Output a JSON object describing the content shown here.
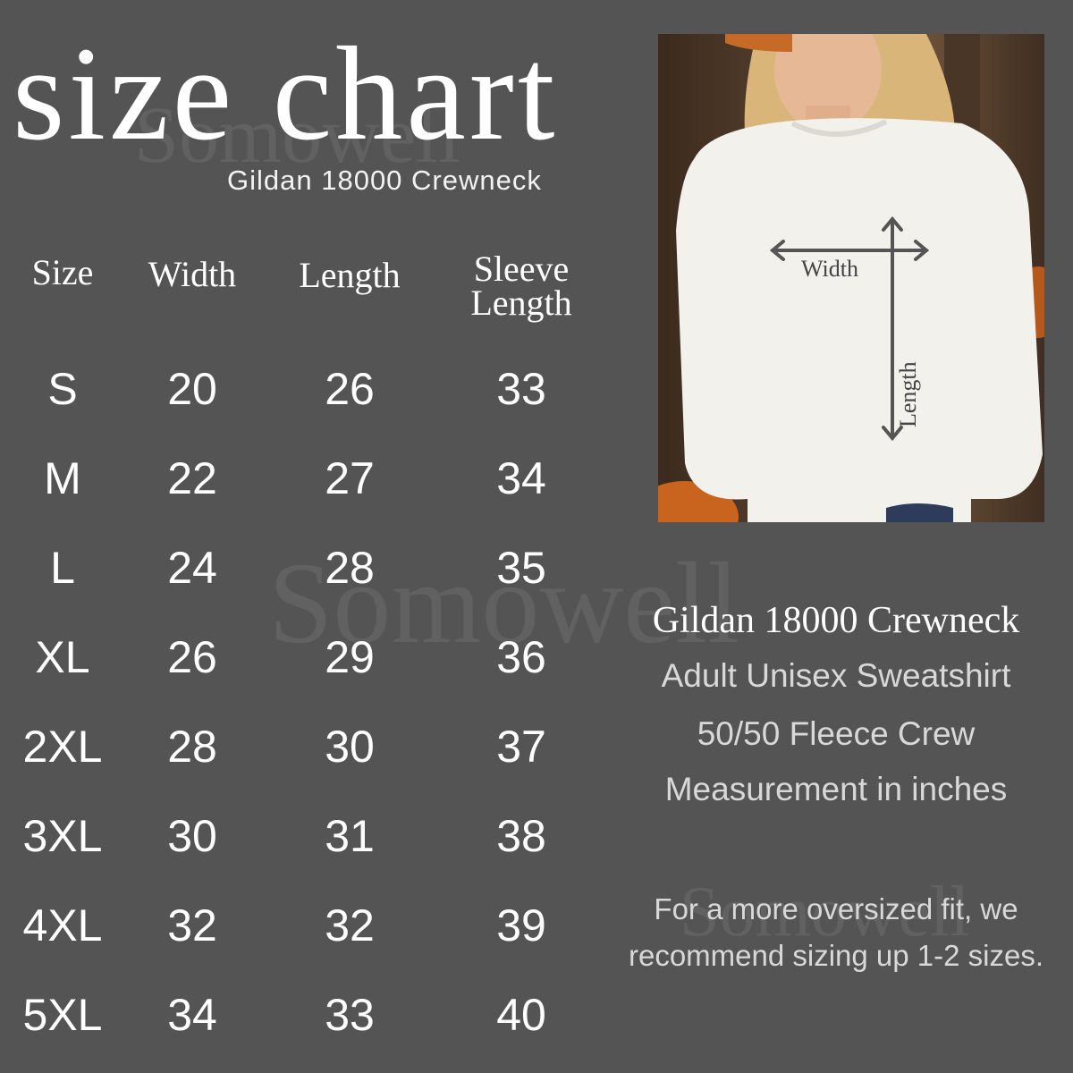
{
  "title": "size chart",
  "subtitle": "Gildan 18000 Crewneck",
  "watermark": "Somowell",
  "table": {
    "headers": [
      "Size",
      "Width",
      "Length",
      "Sleeve Length"
    ],
    "rows": [
      [
        "S",
        "20",
        "26",
        "33"
      ],
      [
        "M",
        "22",
        "27",
        "34"
      ],
      [
        "L",
        "24",
        "28",
        "35"
      ],
      [
        "XL",
        "26",
        "29",
        "36"
      ],
      [
        "2XL",
        "28",
        "30",
        "37"
      ],
      [
        "3XL",
        "30",
        "31",
        "38"
      ],
      [
        "4XL",
        "32",
        "32",
        "39"
      ],
      [
        "5XL",
        "34",
        "33",
        "40"
      ]
    ]
  },
  "photo": {
    "width_label": "Width",
    "length_label": "Length"
  },
  "info": {
    "product": "Gildan 18000 Crewneck",
    "line1": "Adult Unisex Sweatshirt",
    "line2": "50/50 Fleece Crew",
    "line3": "Measurement in inches",
    "note_line1": "For a more oversized fit, we",
    "note_line2": "recommend sizing up 1-2 sizes."
  },
  "colors": {
    "background": "#545454",
    "text": "#ffffff",
    "arrow": "#555555"
  }
}
